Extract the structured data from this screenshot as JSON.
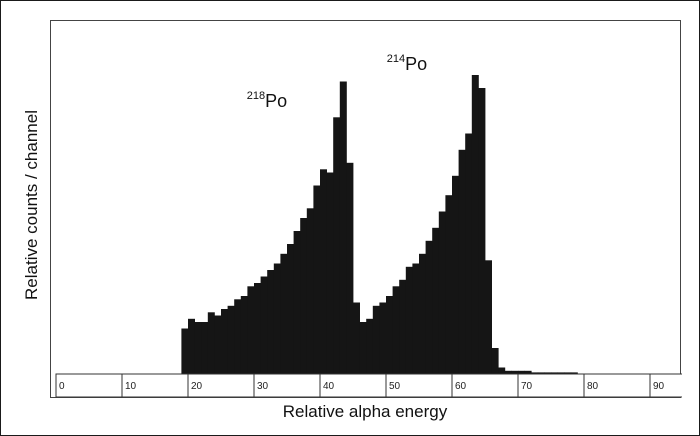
{
  "chart_data": {
    "type": "bar",
    "xlabel": "Relative alpha energy",
    "ylabel": "Relative counts / channel",
    "xlim": [
      0,
      95
    ],
    "ylim": [
      0,
      100
    ],
    "x_ticks": [
      0,
      10,
      20,
      30,
      40,
      50,
      60,
      70,
      80,
      90
    ],
    "x_tick_labels": [
      "0",
      "10",
      "20",
      "30",
      "40",
      "50",
      "60",
      "70",
      "80",
      "90"
    ],
    "annotations": [
      {
        "mass": "218",
        "element": "Po",
        "x": 39
      },
      {
        "mass": "214",
        "element": "Po",
        "x": 61
      }
    ],
    "bin_width": 1,
    "x": [
      19,
      20,
      21,
      22,
      23,
      24,
      25,
      26,
      27,
      28,
      29,
      30,
      31,
      32,
      33,
      34,
      35,
      36,
      37,
      38,
      39,
      40,
      41,
      42,
      43,
      44,
      45,
      46,
      47,
      48,
      49,
      50,
      51,
      52,
      53,
      54,
      55,
      56,
      57,
      58,
      59,
      60,
      61,
      62,
      63,
      64,
      65,
      66,
      67,
      68,
      69,
      70,
      71,
      72,
      73,
      74,
      75,
      76,
      77,
      78
    ],
    "values": [
      14,
      17,
      16,
      16,
      19,
      18,
      20,
      21,
      23,
      24,
      27,
      28,
      30,
      32,
      34,
      37,
      40,
      44,
      48,
      51,
      58,
      63,
      62,
      79,
      90,
      65,
      22,
      16,
      17,
      21,
      22,
      24,
      27,
      29,
      33,
      34,
      37,
      41,
      45,
      50,
      55,
      61,
      69,
      74,
      92,
      88,
      35,
      8,
      2,
      1,
      1,
      1,
      1,
      0.5,
      0.5,
      0.5,
      0.5,
      0.5,
      0.5,
      0.5
    ]
  }
}
